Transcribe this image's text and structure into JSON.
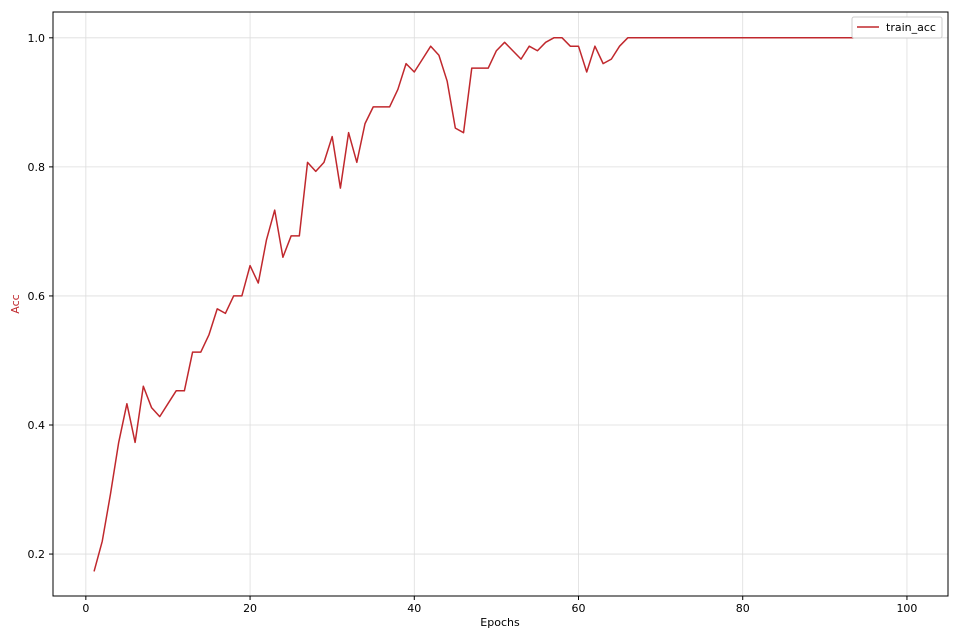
{
  "chart_data": {
    "type": "line",
    "xlabel": "Epochs",
    "ylabel": "Acc",
    "xlim": [
      -4,
      105
    ],
    "ylim": [
      0.135,
      1.04
    ],
    "xticks": [
      0,
      20,
      40,
      60,
      80,
      100
    ],
    "yticks": [
      0.2,
      0.4,
      0.6,
      0.8,
      1.0
    ],
    "xtick_labels": [
      "0",
      "20",
      "40",
      "60",
      "80",
      "100"
    ],
    "ytick_labels": [
      "0.2",
      "0.4",
      "0.6",
      "0.8",
      "1.0"
    ],
    "grid": true,
    "legend": "top-right",
    "series": [
      {
        "name": "train_acc",
        "color": "#c0282d",
        "x": [
          1,
          2,
          3,
          4,
          5,
          6,
          7,
          8,
          9,
          10,
          11,
          12,
          13,
          14,
          15,
          16,
          17,
          18,
          19,
          20,
          21,
          22,
          23,
          24,
          25,
          26,
          27,
          28,
          29,
          30,
          31,
          32,
          33,
          34,
          35,
          36,
          37,
          38,
          39,
          40,
          41,
          42,
          43,
          44,
          45,
          46,
          47,
          48,
          49,
          50,
          51,
          52,
          53,
          54,
          55,
          56,
          57,
          58,
          59,
          60,
          61,
          62,
          63,
          64,
          65,
          66,
          67,
          68,
          69,
          70,
          71,
          72,
          73,
          74,
          75,
          76,
          77,
          78,
          79,
          80,
          81,
          82,
          83,
          84,
          85,
          86,
          87,
          88,
          89,
          90,
          91,
          92,
          93,
          94,
          95,
          96,
          97,
          97,
          98,
          99,
          100
        ],
        "values": [
          0.173,
          0.22,
          0.293,
          0.373,
          0.433,
          0.373,
          0.46,
          0.427,
          0.413,
          0.433,
          0.453,
          0.453,
          0.513,
          0.513,
          0.54,
          0.58,
          0.573,
          0.6,
          0.6,
          0.647,
          0.62,
          0.687,
          0.733,
          0.66,
          0.693,
          0.693,
          0.807,
          0.793,
          0.807,
          0.847,
          0.767,
          0.853,
          0.807,
          0.867,
          0.893,
          0.893,
          0.893,
          0.92,
          0.96,
          0.947,
          0.967,
          0.987,
          0.973,
          0.933,
          0.86,
          0.853,
          0.953,
          0.953,
          0.953,
          0.98,
          0.993,
          0.98,
          0.967,
          0.987,
          0.98,
          0.993,
          1.0,
          1.0,
          0.987,
          0.987,
          0.947,
          0.987,
          0.96,
          0.967,
          0.987,
          1.0,
          1.0,
          1.0,
          1.0,
          1.0,
          1.0,
          1.0,
          1.0,
          1.0,
          1.0,
          1.0,
          1.0,
          1.0,
          1.0,
          1.0,
          1.0,
          1.0,
          1.0,
          1.0,
          1.0,
          1.0,
          1.0,
          1.0,
          1.0,
          1.0,
          1.0,
          1.0,
          1.0,
          1.0,
          1.0,
          1.0,
          1.0,
          1.0,
          1.0,
          1.0,
          1.0
        ]
      }
    ]
  },
  "colors": {
    "series": "#c0282d",
    "ylabel": "#c0282d",
    "grid": "#dddddd",
    "axes": "#000000"
  }
}
